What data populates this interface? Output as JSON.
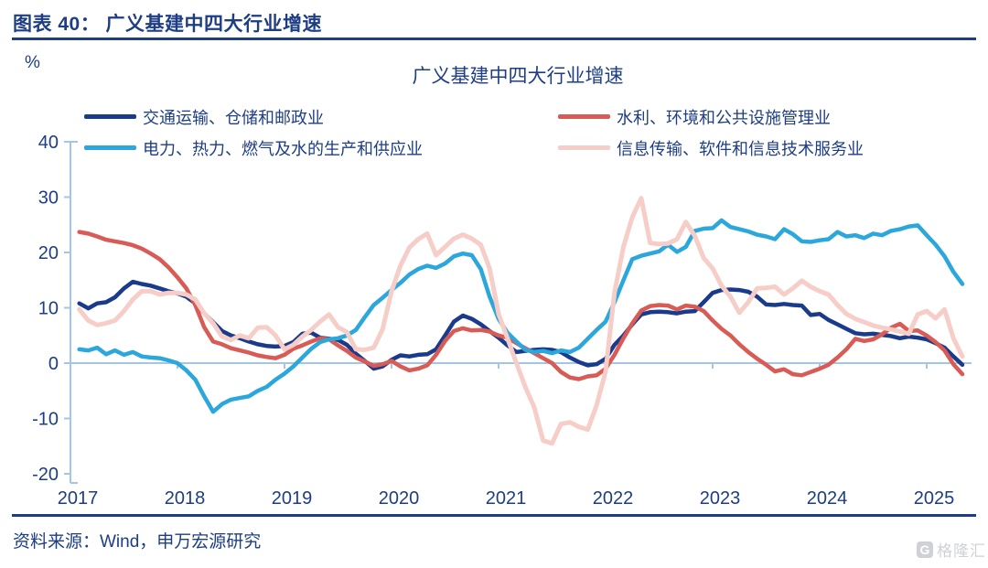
{
  "page": {
    "header_title": "图表 40： 广义基建中四大行业增速",
    "source_note": "资料来源：Wind，申万宏源研究",
    "watermark_text": "格隆汇",
    "watermark_icon": "G",
    "accent_color": "#1d3d85"
  },
  "chart_data": {
    "type": "line",
    "title": "广义基建中四大行业增速",
    "yaxis_unit": "%",
    "ylim": [
      -20,
      40
    ],
    "yticks": [
      40,
      30,
      20,
      10,
      0,
      -10,
      -20
    ],
    "xticks": [
      2017,
      2018,
      2019,
      2020,
      2021,
      2022,
      2023,
      2024,
      2025
    ],
    "grid": false,
    "legend_position": "top",
    "axis_color": "#a3c6e4",
    "x_start": 2017.0833,
    "x_step": 0.083333,
    "series": [
      {
        "id": "transport",
        "name": "交通运输、仓储和邮政业",
        "color": "#1a3a8c",
        "values": [
          10.8,
          9.9,
          10.8,
          11.0,
          11.9,
          13.5,
          14.7,
          14.3,
          14.0,
          13.5,
          13.0,
          12.6,
          12.0,
          10.8,
          9.0,
          7.4,
          5.8,
          5.0,
          4.5,
          3.9,
          3.4,
          3.1,
          3.0,
          3.1,
          3.8,
          5.3,
          5.5,
          4.6,
          4.4,
          4.2,
          3.3,
          1.7,
          0.4,
          -1.0,
          -0.6,
          0.6,
          1.4,
          1.2,
          1.5,
          1.6,
          2.5,
          5.0,
          7.5,
          8.6,
          8.0,
          7.0,
          5.8,
          4.6,
          3.2,
          2.0,
          2.2,
          2.4,
          2.5,
          2.4,
          2.0,
          1.0,
          0.2,
          -0.4,
          -0.2,
          0.8,
          3.3,
          5.0,
          7.0,
          8.8,
          9.2,
          9.3,
          9.2,
          9.0,
          9.3,
          9.4,
          11.0,
          12.7,
          13.2,
          13.3,
          13.2,
          12.9,
          12.0,
          10.6,
          10.5,
          10.7,
          10.5,
          10.4,
          8.7,
          8.9,
          7.8,
          7.0,
          6.2,
          5.4,
          5.2,
          5.3,
          5.1,
          4.9,
          4.5,
          4.8,
          4.6,
          4.3,
          3.6,
          2.8,
          1.2,
          -0.3
        ]
      },
      {
        "id": "water",
        "name": "水利、环境和公共设施管理业",
        "color": "#d95b55",
        "values": [
          23.7,
          23.4,
          22.9,
          22.3,
          22.0,
          21.7,
          21.3,
          20.7,
          19.8,
          18.8,
          17.3,
          15.5,
          13.5,
          10.5,
          6.5,
          3.9,
          3.4,
          2.7,
          2.3,
          1.9,
          1.4,
          1.1,
          0.9,
          1.5,
          2.6,
          3.2,
          3.9,
          4.5,
          4.3,
          3.2,
          2.2,
          1.0,
          0.3,
          -0.5,
          -0.2,
          0.4,
          -0.6,
          -1.3,
          -1.0,
          -0.4,
          1.5,
          4.0,
          5.8,
          6.3,
          5.9,
          6.0,
          5.7,
          5.0,
          4.6,
          3.6,
          2.7,
          1.8,
          0.9,
          0.0,
          -1.6,
          -2.6,
          -2.9,
          -2.4,
          -2.2,
          -1.0,
          1.5,
          4.5,
          7.2,
          9.5,
          10.3,
          10.5,
          10.4,
          9.7,
          10.4,
          10.2,
          9.4,
          7.7,
          6.2,
          5.0,
          3.4,
          2.0,
          0.8,
          -0.3,
          -1.5,
          -1.1,
          -2.0,
          -2.2,
          -1.6,
          -1.0,
          -0.3,
          1.0,
          2.5,
          4.4,
          4.0,
          4.3,
          5.2,
          6.4,
          7.1,
          5.8,
          5.9,
          5.0,
          3.8,
          2.3,
          -0.2,
          -2.0
        ]
      },
      {
        "id": "power",
        "name": "电力、热力、燃气及水的生产和供应业",
        "color": "#2ba7dc",
        "values": [
          2.5,
          2.3,
          2.8,
          1.6,
          2.3,
          1.5,
          2.0,
          1.2,
          1.0,
          0.9,
          0.5,
          0.0,
          -1.3,
          -3.0,
          -6.0,
          -8.8,
          -7.4,
          -6.6,
          -6.3,
          -6.0,
          -5.0,
          -4.3,
          -3.0,
          -1.9,
          -0.6,
          1.0,
          2.6,
          3.8,
          4.3,
          4.5,
          5.0,
          6.0,
          8.3,
          10.5,
          11.8,
          13.2,
          14.5,
          16.0,
          17.0,
          17.6,
          17.2,
          18.0,
          19.3,
          19.8,
          19.5,
          17.0,
          12.0,
          8.0,
          5.5,
          3.9,
          2.4,
          2.0,
          2.2,
          1.8,
          2.3,
          2.0,
          2.8,
          4.4,
          6.0,
          7.5,
          11.0,
          15.0,
          18.8,
          19.4,
          19.8,
          20.2,
          21.4,
          20.1,
          21.0,
          23.9,
          24.3,
          24.4,
          25.8,
          24.6,
          24.2,
          23.8,
          23.2,
          22.9,
          22.4,
          24.2,
          23.3,
          22.0,
          21.9,
          22.2,
          22.4,
          23.7,
          22.9,
          23.1,
          22.6,
          23.4,
          23.1,
          23.9,
          24.2,
          24.7,
          24.9,
          23.1,
          21.4,
          19.3,
          16.5,
          14.3
        ]
      },
      {
        "id": "info",
        "name": "信息传输、软件和信息技术服务业",
        "color": "#f6cdc7",
        "values": [
          9.7,
          7.7,
          6.9,
          7.2,
          7.7,
          9.4,
          11.5,
          13.0,
          13.0,
          12.4,
          12.7,
          12.7,
          12.4,
          11.5,
          9.0,
          7.2,
          4.8,
          4.2,
          5.0,
          4.5,
          6.4,
          6.5,
          5.0,
          2.5,
          3.3,
          4.8,
          6.0,
          7.5,
          8.8,
          6.5,
          5.6,
          2.5,
          2.4,
          2.8,
          6.1,
          13.0,
          17.6,
          20.9,
          22.4,
          23.4,
          19.5,
          21.0,
          22.5,
          23.2,
          22.5,
          21.4,
          17.1,
          8.9,
          4.5,
          0.0,
          -4.3,
          -8.0,
          -14.0,
          -14.5,
          -11.0,
          -10.7,
          -11.5,
          -12.0,
          -7.6,
          -1.5,
          12.7,
          21.0,
          26.4,
          29.8,
          21.7,
          21.5,
          21.6,
          22.4,
          25.5,
          23.0,
          19.0,
          17.1,
          14.0,
          12.0,
          9.1,
          11.0,
          13.5,
          13.6,
          13.8,
          12.4,
          13.5,
          14.9,
          13.8,
          13.0,
          12.4,
          10.5,
          8.9,
          8.0,
          7.4,
          6.8,
          6.4,
          6.1,
          5.7,
          5.3,
          8.8,
          9.4,
          8.1,
          9.7,
          4.5,
          1.2
        ]
      }
    ]
  }
}
